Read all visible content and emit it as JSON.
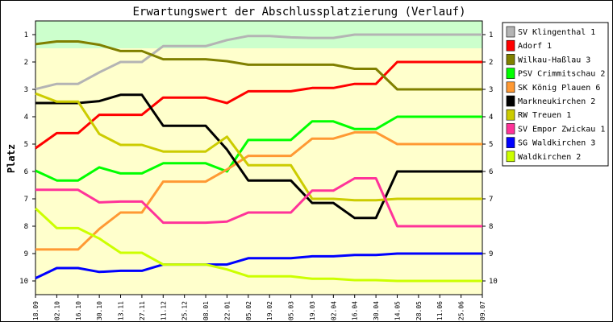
{
  "chart_data": {
    "type": "line",
    "title": "Erwartungswert der Abschlussplatzierung (Verlauf)",
    "ylabel": "Platz",
    "xlabel": "",
    "ylim": [
      0.5,
      10.5
    ],
    "y_inverted": true,
    "yticks": [
      1,
      2,
      3,
      4,
      5,
      6,
      7,
      8,
      9,
      10
    ],
    "categories": [
      "18.09",
      "02.10",
      "16.10",
      "30.10",
      "13.11",
      "27.11",
      "11.12",
      "25.12",
      "08.01",
      "22.01",
      "05.02",
      "19.02",
      "05.03",
      "19.03",
      "02.04",
      "16.04",
      "30.04",
      "14.05",
      "28.05",
      "11.06",
      "25.06",
      "09.07"
    ],
    "bands": [
      {
        "from": 0.5,
        "to": 1.5,
        "color": "#ccffcc"
      },
      {
        "from": 1.5,
        "to": 10.5,
        "color": "#ffffcc"
      }
    ],
    "legend_position": "right",
    "grid": false,
    "series": [
      {
        "name": "SV Klingenthal 1",
        "color": "#b4b4b4",
        "values": [
          2.99,
          2.8,
          2.8,
          2.38,
          2.0,
          2.0,
          1.42,
          1.42,
          1.42,
          1.2,
          1.05,
          1.05,
          1.1,
          1.12,
          1.12,
          1.0,
          1.0,
          1.0,
          1.0,
          1.0,
          1.0,
          1.0
        ]
      },
      {
        "name": "Adorf 1",
        "color": "#ff0000",
        "values": [
          5.15,
          4.6,
          4.6,
          3.93,
          3.93,
          3.93,
          3.3,
          3.3,
          3.3,
          3.5,
          3.07,
          3.07,
          3.07,
          2.95,
          2.95,
          2.8,
          2.8,
          2.0,
          2.0,
          2.0,
          2.0,
          2.0
        ]
      },
      {
        "name": "Wilkau-Haßlau 3",
        "color": "#808000",
        "values": [
          1.35,
          1.25,
          1.25,
          1.37,
          1.6,
          1.6,
          1.9,
          1.9,
          1.9,
          1.97,
          2.1,
          2.1,
          2.1,
          2.1,
          2.1,
          2.25,
          2.25,
          3.0,
          3.0,
          3.0,
          3.0,
          3.0
        ]
      },
      {
        "name": "PSV Crimmitschau 2",
        "color": "#00ff00",
        "values": [
          5.97,
          6.33,
          6.33,
          5.85,
          6.07,
          6.07,
          5.7,
          5.7,
          5.7,
          6.0,
          4.85,
          4.85,
          4.85,
          4.17,
          4.17,
          4.45,
          4.45,
          4.0,
          4.0,
          4.0,
          4.0,
          4.0
        ]
      },
      {
        "name": "SK König Plauen 6",
        "color": "#ff9933",
        "values": [
          8.85,
          8.85,
          8.85,
          8.1,
          7.5,
          7.5,
          6.37,
          6.37,
          6.37,
          5.93,
          5.43,
          5.43,
          5.43,
          4.8,
          4.8,
          4.57,
          4.57,
          5.0,
          5.0,
          5.0,
          5.0,
          5.0
        ]
      },
      {
        "name": "Markneukirchen 2",
        "color": "#000000",
        "values": [
          3.5,
          3.5,
          3.5,
          3.43,
          3.2,
          3.2,
          4.33,
          4.33,
          4.33,
          5.2,
          6.33,
          6.33,
          6.33,
          7.15,
          7.15,
          7.7,
          7.7,
          6.0,
          6.0,
          6.0,
          6.0,
          6.0
        ]
      },
      {
        "name": "RW Treuen 1",
        "color": "#cccc00",
        "values": [
          3.15,
          3.45,
          3.45,
          4.63,
          5.03,
          5.03,
          5.27,
          5.27,
          5.27,
          4.73,
          5.77,
          5.77,
          5.77,
          7.0,
          7.0,
          7.05,
          7.05,
          7.0,
          7.0,
          7.0,
          7.0,
          7.0
        ]
      },
      {
        "name": "SV Empor Zwickau 1",
        "color": "#ff3399",
        "values": [
          6.67,
          6.67,
          6.67,
          7.13,
          7.1,
          7.1,
          7.87,
          7.87,
          7.87,
          7.83,
          7.5,
          7.5,
          7.5,
          6.7,
          6.7,
          6.25,
          6.25,
          8.0,
          8.0,
          8.0,
          8.0,
          8.0
        ]
      },
      {
        "name": "SG Waldkirchen 3",
        "color": "#0000ff",
        "values": [
          9.9,
          9.53,
          9.53,
          9.67,
          9.63,
          9.63,
          9.4,
          9.4,
          9.4,
          9.4,
          9.17,
          9.17,
          9.17,
          9.1,
          9.1,
          9.05,
          9.05,
          9.0,
          9.0,
          9.0,
          9.0,
          9.0
        ]
      },
      {
        "name": "Waldkirchen 2",
        "color": "#ccff00",
        "values": [
          7.35,
          8.07,
          8.07,
          8.45,
          8.97,
          8.97,
          9.4,
          9.4,
          9.4,
          9.58,
          9.83,
          9.83,
          9.83,
          9.92,
          9.92,
          9.97,
          9.97,
          10.0,
          10.0,
          10.0,
          10.0,
          10.0
        ]
      }
    ]
  }
}
